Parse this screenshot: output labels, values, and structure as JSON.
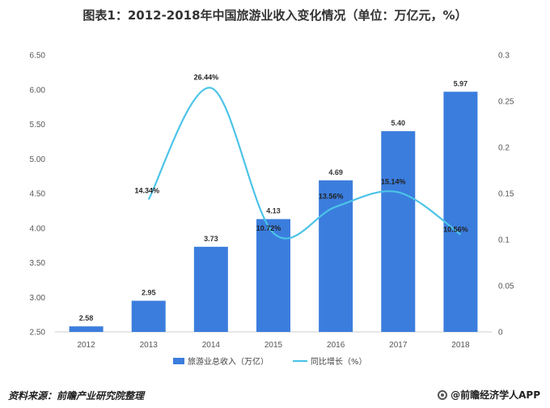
{
  "title": "图表1：2012-2018年中国旅游业收入变化情况（单位：万亿元，%）",
  "source": "资料来源：前瞻产业研究院整理",
  "brand": "@前瞻经济学人APP",
  "chart_data": {
    "type": "bar",
    "categories": [
      "2012",
      "2013",
      "2014",
      "2015",
      "2016",
      "2017",
      "2018"
    ],
    "series": [
      {
        "name": "旅游业总收入（万亿）",
        "type": "bar",
        "axis": "left",
        "color": "#3b7ddd",
        "values": [
          2.58,
          2.95,
          3.73,
          4.13,
          4.69,
          5.4,
          5.97
        ],
        "labels": [
          "2.58",
          "2.95",
          "3.73",
          "4.13",
          "4.69",
          "5.40",
          "5.97"
        ]
      },
      {
        "name": "同比增长（%）",
        "type": "line",
        "axis": "right",
        "color": "#4cc3e8",
        "values": [
          null,
          0.1434,
          0.2644,
          0.1072,
          0.1356,
          0.1514,
          0.1056
        ],
        "labels": [
          "",
          "14.34%",
          "26.44%",
          "10.72%",
          "13.56%",
          "15.14%",
          "10.56%"
        ]
      }
    ],
    "y_left": {
      "min": 2.5,
      "max": 6.5,
      "ticks": [
        "2.50",
        "3.00",
        "3.50",
        "4.00",
        "4.50",
        "5.00",
        "5.50",
        "6.00",
        "6.50"
      ]
    },
    "y_right": {
      "min": 0,
      "max": 0.3,
      "ticks": [
        "0",
        "0.05",
        "0.1",
        "0.15",
        "0.2",
        "0.25",
        "0.3"
      ]
    },
    "grid": false,
    "legend_position": "bottom"
  }
}
